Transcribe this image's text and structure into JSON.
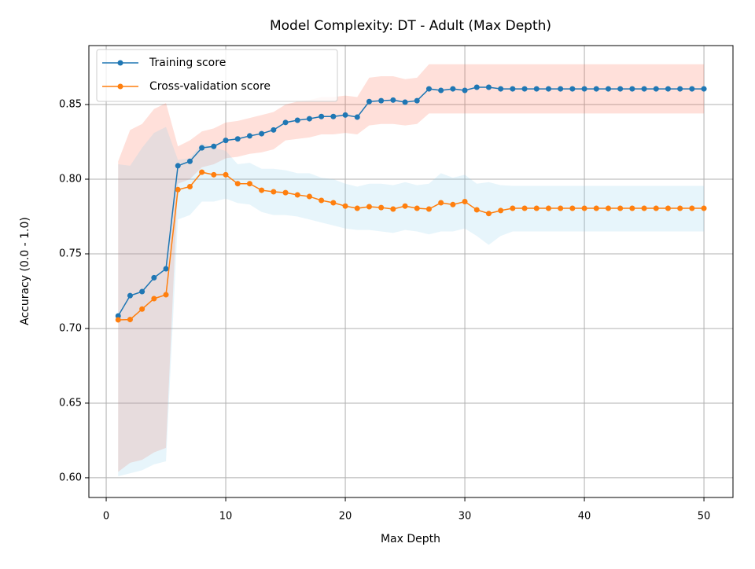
{
  "chart_data": {
    "type": "line",
    "title": "Model Complexity: DT - Adult (Max Depth)",
    "xlabel": "Max Depth",
    "ylabel": "Accuracy (0.0 - 1.0)",
    "x": [
      1,
      2,
      3,
      4,
      5,
      6,
      7,
      8,
      9,
      10,
      11,
      12,
      13,
      14,
      15,
      16,
      17,
      18,
      19,
      20,
      21,
      22,
      23,
      24,
      25,
      26,
      27,
      28,
      29,
      30,
      31,
      32,
      33,
      34,
      35,
      36,
      37,
      38,
      39,
      40,
      41,
      42,
      43,
      44,
      45,
      46,
      47,
      48,
      49,
      50
    ],
    "series": [
      {
        "name": "Training score",
        "color": "#1f77b4",
        "band_color": "#ff6347",
        "values": [
          0.7084,
          0.722,
          0.7247,
          0.734,
          0.74,
          0.809,
          0.812,
          0.821,
          0.822,
          0.826,
          0.827,
          0.829,
          0.8305,
          0.833,
          0.838,
          0.8395,
          0.8405,
          0.842,
          0.842,
          0.843,
          0.8416,
          0.852,
          0.8526,
          0.853,
          0.8516,
          0.8526,
          0.8605,
          0.8595,
          0.8605,
          0.8595,
          0.8616,
          0.8616,
          0.8605,
          0.8605,
          0.8605,
          0.8605,
          0.8605,
          0.8605,
          0.8605,
          0.8605,
          0.8605,
          0.8605,
          0.8605,
          0.8605,
          0.8605,
          0.8605,
          0.8605,
          0.8605,
          0.8605,
          0.8605
        ],
        "band_lower": [
          0.604,
          0.61,
          0.612,
          0.617,
          0.62,
          0.797,
          0.8,
          0.808,
          0.81,
          0.814,
          0.815,
          0.817,
          0.818,
          0.82,
          0.826,
          0.827,
          0.828,
          0.83,
          0.83,
          0.831,
          0.83,
          0.836,
          0.837,
          0.837,
          0.836,
          0.837,
          0.844,
          0.844,
          0.844,
          0.844,
          0.844,
          0.844,
          0.844,
          0.844,
          0.844,
          0.844,
          0.844,
          0.844,
          0.844,
          0.844,
          0.844,
          0.844,
          0.844,
          0.844,
          0.844,
          0.844,
          0.844,
          0.844,
          0.844,
          0.844
        ],
        "band_upper": [
          0.812,
          0.833,
          0.837,
          0.847,
          0.851,
          0.822,
          0.826,
          0.832,
          0.834,
          0.838,
          0.839,
          0.841,
          0.843,
          0.845,
          0.85,
          0.852,
          0.853,
          0.855,
          0.855,
          0.856,
          0.855,
          0.868,
          0.869,
          0.869,
          0.867,
          0.868,
          0.877,
          0.877,
          0.877,
          0.877,
          0.877,
          0.877,
          0.877,
          0.877,
          0.877,
          0.877,
          0.877,
          0.877,
          0.877,
          0.877,
          0.877,
          0.877,
          0.877,
          0.877,
          0.877,
          0.877,
          0.877,
          0.877,
          0.877,
          0.877
        ]
      },
      {
        "name": "Cross-validation score",
        "color": "#ff7f0e",
        "band_color": "#87ceeb",
        "values": [
          0.7058,
          0.706,
          0.713,
          0.72,
          0.7226,
          0.793,
          0.795,
          0.8047,
          0.803,
          0.803,
          0.797,
          0.797,
          0.7926,
          0.7916,
          0.791,
          0.7895,
          0.7884,
          0.7858,
          0.7842,
          0.782,
          0.7805,
          0.7816,
          0.781,
          0.78,
          0.782,
          0.7805,
          0.78,
          0.7842,
          0.783,
          0.785,
          0.7795,
          0.777,
          0.779,
          0.7805,
          0.7805,
          0.7805,
          0.7805,
          0.7805,
          0.7805,
          0.7805,
          0.7805,
          0.7805,
          0.7805,
          0.7805,
          0.7805,
          0.7805,
          0.7805,
          0.7805,
          0.7805,
          0.7805
        ],
        "band_lower": [
          0.601,
          0.603,
          0.605,
          0.609,
          0.611,
          0.773,
          0.776,
          0.785,
          0.785,
          0.787,
          0.784,
          0.783,
          0.778,
          0.776,
          0.776,
          0.775,
          0.773,
          0.771,
          0.769,
          0.767,
          0.766,
          0.766,
          0.765,
          0.764,
          0.766,
          0.765,
          0.763,
          0.765,
          0.765,
          0.767,
          0.762,
          0.756,
          0.762,
          0.765,
          0.765,
          0.765,
          0.765,
          0.765,
          0.765,
          0.765,
          0.765,
          0.765,
          0.765,
          0.765,
          0.765,
          0.765,
          0.765,
          0.765,
          0.765,
          0.765
        ],
        "band_upper": [
          0.81,
          0.809,
          0.821,
          0.831,
          0.835,
          0.813,
          0.814,
          0.824,
          0.821,
          0.819,
          0.81,
          0.811,
          0.807,
          0.807,
          0.806,
          0.804,
          0.804,
          0.801,
          0.8,
          0.797,
          0.795,
          0.797,
          0.797,
          0.796,
          0.798,
          0.796,
          0.797,
          0.804,
          0.801,
          0.803,
          0.797,
          0.798,
          0.796,
          0.7955,
          0.7955,
          0.7955,
          0.7955,
          0.7955,
          0.7955,
          0.7955,
          0.7955,
          0.7955,
          0.7955,
          0.7955,
          0.7955,
          0.7955,
          0.7955,
          0.7955,
          0.7955,
          0.7955
        ]
      }
    ],
    "xlim": [
      -1.45,
      52.43
    ],
    "ylim": [
      0.5868,
      0.8895
    ],
    "xticks": [
      0,
      10,
      20,
      30,
      40,
      50
    ],
    "yticks": [
      {
        "value": 0.6,
        "label": "0.60"
      },
      0.65,
      {
        "value": 0.7,
        "label": "0.70"
      },
      0.75,
      {
        "value": 0.8,
        "label": "0.80"
      },
      0.85
    ],
    "grid": true,
    "legend": "upper left"
  }
}
